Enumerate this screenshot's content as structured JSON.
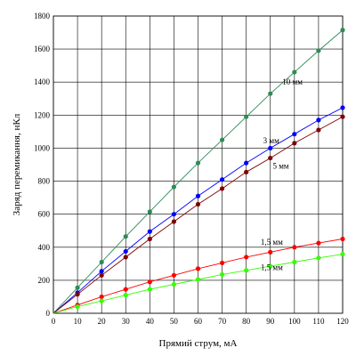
{
  "chart_data": {
    "type": "line",
    "xlabel": "Прямий струм, мА",
    "ylabel": "Заряд перемикання, нКл",
    "xlim": [
      0,
      120
    ],
    "ylim": [
      0,
      1800
    ],
    "xticks": [
      0,
      10,
      20,
      30,
      40,
      50,
      60,
      70,
      80,
      90,
      100,
      110,
      120
    ],
    "yticks": [
      0,
      200,
      400,
      600,
      800,
      1000,
      1200,
      1400,
      1600,
      1800
    ],
    "grid": true,
    "series": [
      {
        "name": "10 мм",
        "color": "#2e8b57",
        "x": [
          0,
          10,
          20,
          30,
          40,
          50,
          60,
          70,
          80,
          90,
          100,
          110,
          120
        ],
        "y": [
          0,
          155,
          310,
          465,
          615,
          765,
          910,
          1050,
          1190,
          1330,
          1460,
          1590,
          1715
        ]
      },
      {
        "name": "3 мм",
        "color": "#0000ff",
        "x": [
          0,
          10,
          20,
          30,
          40,
          50,
          60,
          70,
          80,
          90,
          100,
          110,
          120
        ],
        "y": [
          0,
          125,
          255,
          375,
          495,
          600,
          710,
          810,
          910,
          1000,
          1085,
          1170,
          1245
        ]
      },
      {
        "name": "5 мм",
        "color": "#800000",
        "x": [
          0,
          10,
          20,
          30,
          40,
          50,
          60,
          70,
          80,
          90,
          100,
          110,
          120
        ],
        "y": [
          0,
          115,
          230,
          340,
          450,
          555,
          660,
          755,
          855,
          940,
          1030,
          1110,
          1190
        ]
      },
      {
        "name": "1,5 мм",
        "color": "#ff0000",
        "x": [
          0,
          10,
          20,
          30,
          40,
          50,
          60,
          70,
          80,
          90,
          100,
          110,
          120
        ],
        "y": [
          0,
          50,
          100,
          145,
          190,
          230,
          270,
          305,
          340,
          370,
          400,
          425,
          450
        ]
      },
      {
        "name": "1,5 мм",
        "color": "#33ff00",
        "x": [
          0,
          10,
          20,
          30,
          40,
          50,
          60,
          70,
          80,
          90,
          100,
          110,
          120
        ],
        "y": [
          0,
          40,
          75,
          110,
          145,
          175,
          205,
          235,
          260,
          285,
          310,
          335,
          358
        ]
      }
    ]
  }
}
